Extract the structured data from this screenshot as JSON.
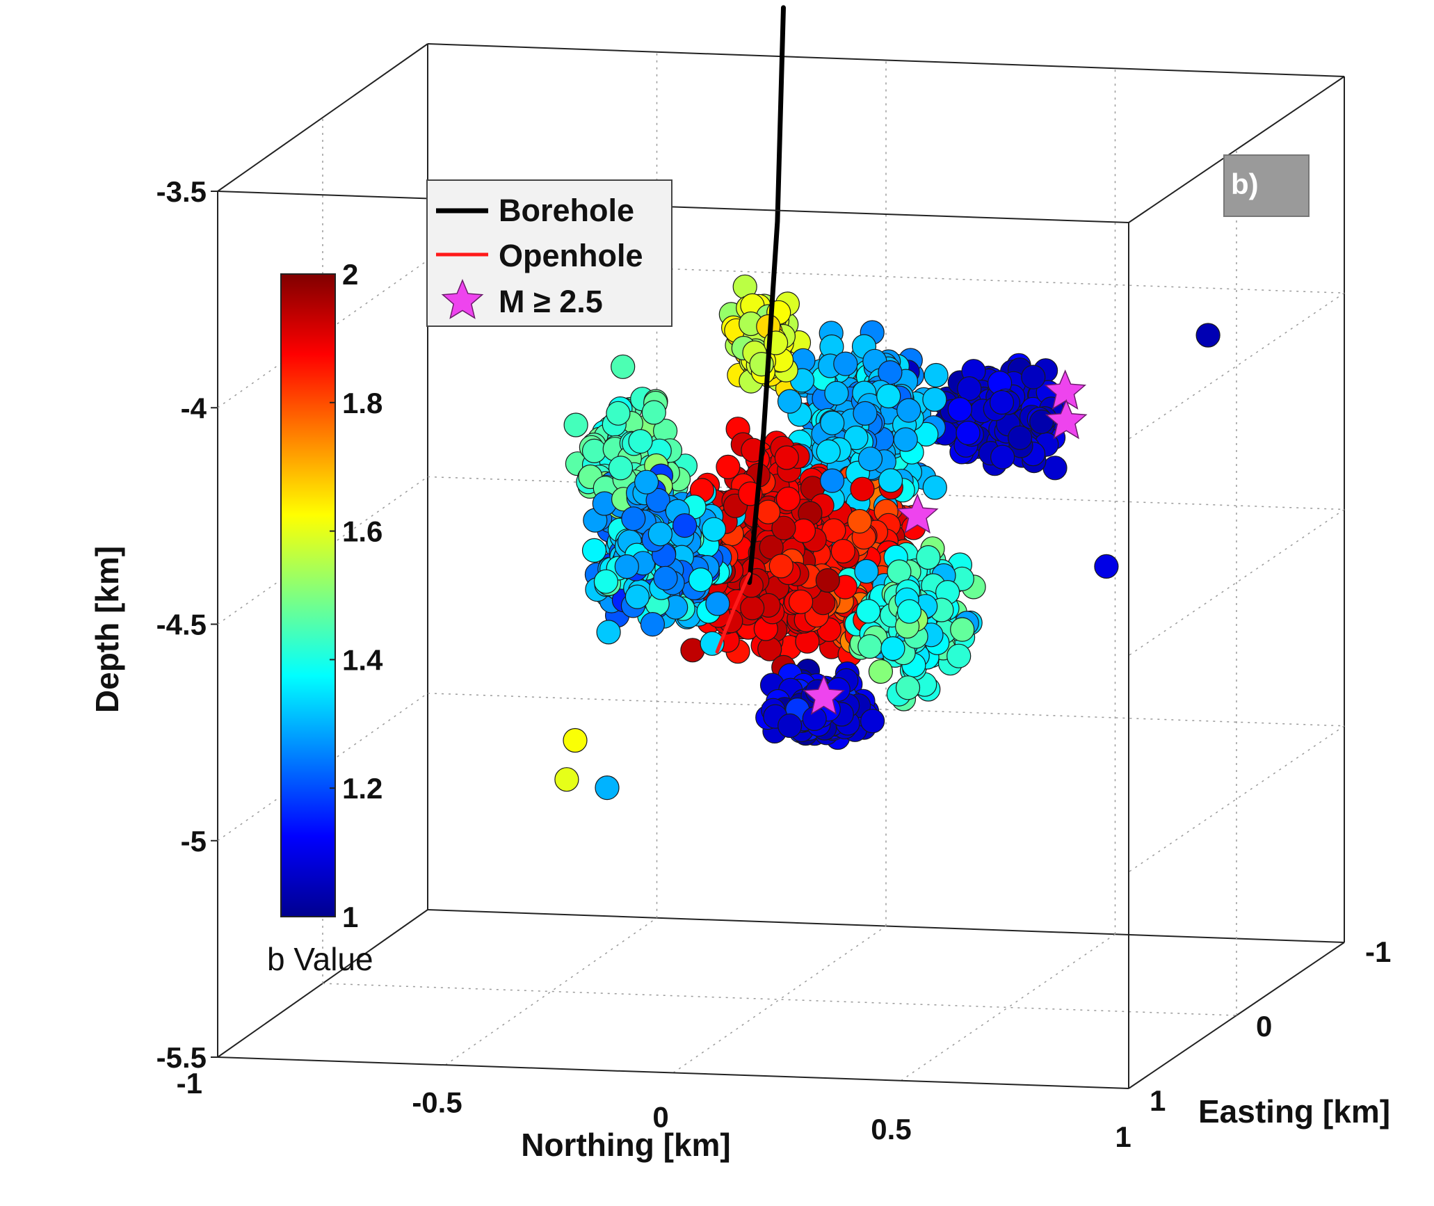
{
  "chart_data": {
    "type": "scatter",
    "title": "",
    "panel_label": "b)",
    "xlabel": "Northing [km]",
    "ylabel": "Easting [km]",
    "zlabel": "Depth [km]",
    "xlim": [
      -1,
      1
    ],
    "ylim": [
      -1,
      1
    ],
    "zlim": [
      -5.5,
      -3.5
    ],
    "xticks": [
      "-1",
      "-0.5",
      "0",
      "0.5",
      "1"
    ],
    "yticks": [
      "-1",
      "0",
      "1"
    ],
    "zticks": [
      "-3.5",
      "-4",
      "-4.5",
      "-5",
      "-5.5"
    ],
    "grid": true,
    "colorbar": {
      "label": "b Value",
      "min": 1,
      "max": 2,
      "ticks": [
        "2",
        "1.8",
        "1.6",
        "1.4",
        "1.2",
        "1"
      ],
      "colormap": "jet"
    },
    "legend": {
      "placement": "top-left",
      "entries": [
        {
          "label": "Borehole",
          "marker": "line",
          "color": "#000000"
        },
        {
          "label": "Openhole",
          "marker": "line",
          "color": "#ff1a1a"
        },
        {
          "label": "M ≥ 2.5",
          "marker": "star",
          "color": "#ee44ee"
        }
      ]
    },
    "series": [
      {
        "name": "Borehole",
        "type": "line",
        "color": "#000000",
        "points": [
          [
            0.02,
            0.05,
            -3.2
          ],
          [
            0.0,
            0.02,
            -3.7
          ],
          [
            -0.04,
            -0.02,
            -4.2
          ],
          [
            -0.08,
            -0.06,
            -4.55
          ]
        ]
      },
      {
        "name": "Openhole",
        "type": "line",
        "color": "#ff1a1a",
        "points": [
          [
            -0.08,
            -0.06,
            -4.53
          ],
          [
            -0.12,
            -0.08,
            -4.62
          ],
          [
            -0.16,
            -0.1,
            -4.72
          ]
        ]
      },
      {
        "name": "M ≥ 2.5",
        "type": "star",
        "color": "#ee44ee",
        "points": [
          [
            0.55,
            -0.32,
            -4.13
          ],
          [
            0.55,
            -0.33,
            -4.2
          ],
          [
            0.29,
            -0.05,
            -4.38
          ],
          [
            0.12,
            0.1,
            -4.78
          ]
        ]
      }
    ],
    "events_summary": {
      "count_estimate": 2500,
      "b_value_range": [
        1,
        2
      ],
      "depth_range": [
        -5.0,
        -3.85
      ]
    }
  }
}
